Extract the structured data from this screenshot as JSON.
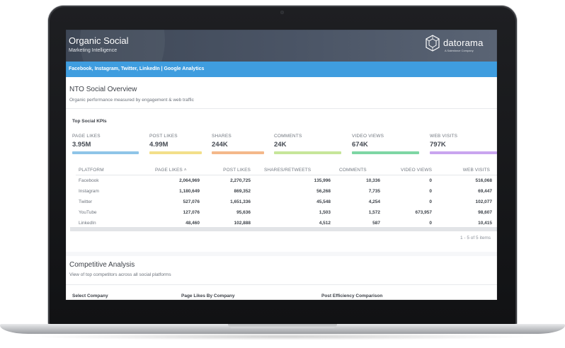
{
  "app": {
    "title": "Organic Social",
    "subtitle": "Marketing Intelligence",
    "brand": "datorama",
    "brand_tag": "A Salesforce Company",
    "filter": "Facebook, Instagram, Twitter, LinkedIn  |  Google Analytics"
  },
  "overview": {
    "title": "NTO Social Overview",
    "description": "Organic performance measured by engagement & web traffic",
    "card_title": "Top Social KPIs"
  },
  "kpis": [
    {
      "label": "PAGE LIKES",
      "value": "3.95M",
      "color": "#8fc5e8"
    },
    {
      "label": "POST LIKES",
      "value": "4.99M",
      "color": "#f3df8a"
    },
    {
      "label": "SHARES",
      "value": "244K",
      "color": "#f4b88a"
    },
    {
      "label": "COMMENTS",
      "value": "24K",
      "color": "#c7e69a"
    },
    {
      "label": "VIDEO VIEWS",
      "value": "674K",
      "color": "#7ed6a4"
    },
    {
      "label": "WEB VISITS",
      "value": "797K",
      "color": "#c9a5ef"
    }
  ],
  "table": {
    "columns": [
      "PLATFORM",
      "PAGE LIKES",
      "POST LIKES",
      "SHARES/RETWEETS",
      "COMMENTS",
      "VIDEO VIEWS",
      "WEB VISITS"
    ],
    "sort_glyph": "˄",
    "rows": [
      [
        "Facebook",
        "2,064,969",
        "2,270,725",
        "135,996",
        "10,336",
        "0",
        "516,068"
      ],
      [
        "Instagram",
        "1,180,649",
        "869,352",
        "56,268",
        "7,735",
        "0",
        "69,447"
      ],
      [
        "Twitter",
        "527,076",
        "1,651,336",
        "45,548",
        "4,254",
        "0",
        "102,077"
      ],
      [
        "YouTube",
        "127,076",
        "95,636",
        "1,503",
        "1,572",
        "673,957",
        "98,607"
      ],
      [
        "LinkedIn",
        "48,460",
        "102,888",
        "4,512",
        "587",
        "0",
        "10,415"
      ]
    ],
    "pager": "1 - 5 of 5 items"
  },
  "competitive": {
    "title": "Competitive Analysis",
    "description": "View of top competitors across all social platforms",
    "card_headers": [
      "Select Company",
      "Page Likes By Company",
      "Post Efficiency Comparison"
    ]
  }
}
